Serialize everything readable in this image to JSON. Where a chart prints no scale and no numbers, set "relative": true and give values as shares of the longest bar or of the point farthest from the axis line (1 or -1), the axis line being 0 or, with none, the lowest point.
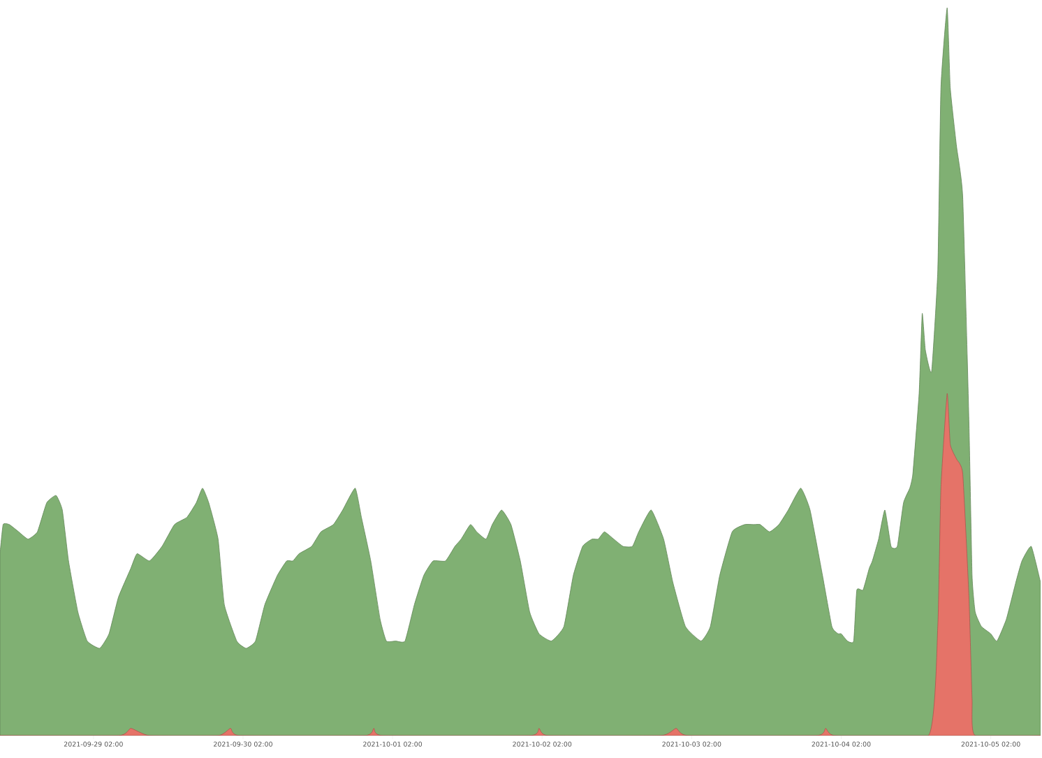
{
  "chart_data": {
    "type": "area",
    "relative": true,
    "marker": "none",
    "xlim": [
      "2021-09-28T11:00",
      "2021-10-05T10:00"
    ],
    "xticks": [
      {
        "value": "2021-09-29T02:00",
        "label": "2021-09-29 02:00"
      },
      {
        "value": "2021-09-30T02:00",
        "label": "2021-09-30 02:00"
      },
      {
        "value": "2021-10-01T02:00",
        "label": "2021-10-01 02:00"
      },
      {
        "value": "2021-10-02T02:00",
        "label": "2021-10-02 02:00"
      },
      {
        "value": "2021-10-03T02:00",
        "label": "2021-10-03 02:00"
      },
      {
        "value": "2021-10-04T02:00",
        "label": "2021-10-04 02:00"
      },
      {
        "value": "2021-10-05T02:00",
        "label": "2021-10-05 02:00"
      }
    ],
    "series": [
      {
        "color": "#80b073",
        "x": [
          "2021-09-28T11:00",
          "2021-09-28T11:30",
          "2021-09-28T12:30",
          "2021-09-28T14:00",
          "2021-09-28T15:30",
          "2021-09-28T17:00",
          "2021-09-28T18:30",
          "2021-09-28T20:00",
          "2021-09-28T21:00",
          "2021-09-28T22:00",
          "2021-09-28T23:30",
          "2021-09-29T01:00",
          "2021-09-29T03:00",
          "2021-09-29T04:30",
          "2021-09-29T06:00",
          "2021-09-29T08:00",
          "2021-09-29T09:00",
          "2021-09-29T11:00",
          "2021-09-29T13:00",
          "2021-09-29T15:00",
          "2021-09-29T17:00",
          "2021-09-29T18:30",
          "2021-09-29T19:30",
          "2021-09-29T20:30",
          "2021-09-29T22:00",
          "2021-09-29T23:00",
          "2021-09-30T01:00",
          "2021-09-30T02:30",
          "2021-09-30T04:00",
          "2021-09-30T05:30",
          "2021-09-30T07:30",
          "2021-09-30T09:00",
          "2021-09-30T10:00",
          "2021-09-30T11:00",
          "2021-09-30T13:00",
          "2021-09-30T14:30",
          "2021-09-30T16:30",
          "2021-09-30T18:00",
          "2021-09-30T20:00",
          "2021-09-30T21:00",
          "2021-09-30T22:30",
          "2021-10-01T00:00",
          "2021-10-01T01:00",
          "2021-10-01T02:30",
          "2021-10-01T04:00",
          "2021-10-01T05:30",
          "2021-10-01T07:00",
          "2021-10-01T08:30",
          "2021-10-01T10:30",
          "2021-10-01T12:00",
          "2021-10-01T13:00",
          "2021-10-01T14:30",
          "2021-10-01T15:30",
          "2021-10-01T17:00",
          "2021-10-01T18:00",
          "2021-10-01T19:30",
          "2021-10-01T21:00",
          "2021-10-01T22:30",
          "2021-10-02T00:00",
          "2021-10-02T01:30",
          "2021-10-02T03:30",
          "2021-10-02T05:30",
          "2021-10-02T07:00",
          "2021-10-02T08:30",
          "2021-10-02T10:00",
          "2021-10-02T11:00",
          "2021-10-02T12:00",
          "2021-10-02T13:30",
          "2021-10-02T15:00",
          "2021-10-02T16:30",
          "2021-10-02T17:30",
          "2021-10-02T19:30",
          "2021-10-02T21:30",
          "2021-10-02T23:00",
          "2021-10-03T01:00",
          "2021-10-03T03:30",
          "2021-10-03T05:00",
          "2021-10-03T06:30",
          "2021-10-03T08:30",
          "2021-10-03T10:30",
          "2021-10-03T12:00",
          "2021-10-03T13:00",
          "2021-10-03T14:30",
          "2021-10-03T16:00",
          "2021-10-03T17:30",
          "2021-10-03T19:30",
          "2021-10-03T21:00",
          "2021-10-03T23:00",
          "2021-10-04T00:30",
          "2021-10-04T01:30",
          "2021-10-04T02:00",
          "2021-10-04T03:00",
          "2021-10-04T04:00",
          "2021-10-04T04:30",
          "2021-10-04T05:30",
          "2021-10-04T06:30",
          "2021-10-04T07:00",
          "2021-10-04T08:00",
          "2021-10-04T09:00",
          "2021-10-04T10:00",
          "2021-10-04T11:00",
          "2021-10-04T12:00",
          "2021-10-04T13:00",
          "2021-10-04T13:30",
          "2021-10-04T14:30",
          "2021-10-04T15:00",
          "2021-10-04T15:30",
          "2021-10-04T16:30",
          "2021-10-04T17:30",
          "2021-10-04T18:00",
          "2021-10-04T19:00",
          "2021-10-04T19:30",
          "2021-10-04T20:30",
          "2021-10-04T21:30",
          "2021-10-04T22:30",
          "2021-10-04T23:00",
          "2021-10-04T23:30",
          "2021-10-05T00:30",
          "2021-10-05T02:00",
          "2021-10-05T03:00",
          "2021-10-05T04:30",
          "2021-10-05T06:00",
          "2021-10-05T07:00",
          "2021-10-05T08:30",
          "2021-10-05T10:00"
        ],
        "values": [
          0.25,
          0.29,
          0.29,
          0.28,
          0.27,
          0.28,
          0.32,
          0.33,
          0.31,
          0.24,
          0.17,
          0.13,
          0.12,
          0.14,
          0.19,
          0.23,
          0.25,
          0.24,
          0.26,
          0.29,
          0.3,
          0.32,
          0.34,
          0.32,
          0.27,
          0.18,
          0.13,
          0.12,
          0.13,
          0.18,
          0.22,
          0.24,
          0.24,
          0.25,
          0.26,
          0.28,
          0.29,
          0.31,
          0.34,
          0.3,
          0.24,
          0.16,
          0.13,
          0.13,
          0.13,
          0.18,
          0.22,
          0.24,
          0.24,
          0.26,
          0.27,
          0.29,
          0.28,
          0.27,
          0.29,
          0.31,
          0.29,
          0.24,
          0.17,
          0.14,
          0.13,
          0.15,
          0.22,
          0.26,
          0.27,
          0.27,
          0.28,
          0.27,
          0.26,
          0.26,
          0.28,
          0.31,
          0.27,
          0.21,
          0.15,
          0.13,
          0.15,
          0.22,
          0.28,
          0.29,
          0.29,
          0.29,
          0.28,
          0.29,
          0.31,
          0.34,
          0.31,
          0.22,
          0.15,
          0.14,
          0.14,
          0.13,
          0.13,
          0.2,
          0.2,
          0.23,
          0.24,
          0.27,
          0.31,
          0.26,
          0.26,
          0.32,
          0.34,
          0.36,
          0.47,
          0.58,
          0.53,
          0.5,
          0.64,
          0.89,
          1.0,
          0.89,
          0.81,
          0.74,
          0.43,
          0.22,
          0.17,
          0.15,
          0.14,
          0.13,
          0.16,
          0.21,
          0.24,
          0.26,
          0.21
        ]
      },
      {
        "color": "#e57368",
        "x": [
          "2021-09-28T11:00",
          "2021-09-29T06:00",
          "2021-09-29T08:00",
          "2021-09-29T11:00",
          "2021-09-29T22:00",
          "2021-09-30T00:00",
          "2021-09-30T01:30",
          "2021-09-30T21:30",
          "2021-09-30T23:00",
          "2021-10-01T00:30",
          "2021-10-02T00:00",
          "2021-10-02T01:30",
          "2021-10-02T03:00",
          "2021-10-02T21:00",
          "2021-10-02T23:30",
          "2021-10-03T01:30",
          "2021-10-03T22:00",
          "2021-10-03T23:30",
          "2021-10-04T01:00",
          "2021-10-04T16:00",
          "2021-10-04T17:30",
          "2021-10-04T18:00",
          "2021-10-04T19:00",
          "2021-10-04T19:30",
          "2021-10-04T20:30",
          "2021-10-04T21:30",
          "2021-10-04T22:30",
          "2021-10-04T23:00",
          "2021-10-04T23:30",
          "2021-10-05T10:00"
        ],
        "values": [
          0,
          0,
          0.01,
          0,
          0,
          0.01,
          0,
          0,
          0.01,
          0,
          0,
          0.01,
          0,
          0,
          0.01,
          0,
          0,
          0.01,
          0,
          0,
          0.15,
          0.34,
          0.47,
          0.4,
          0.38,
          0.36,
          0.19,
          0.05,
          0,
          0
        ]
      }
    ]
  }
}
